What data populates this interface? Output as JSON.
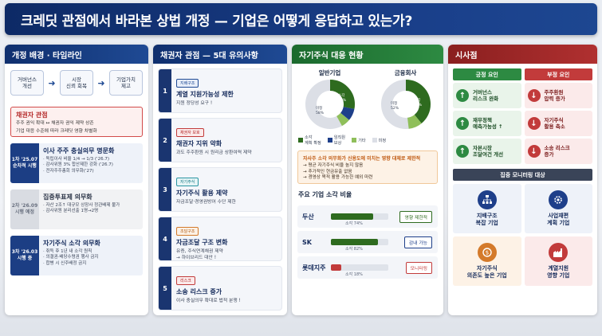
{
  "title": "크레딧 관점에서 바라본 상법 개정 — 기업은 어떻게 응답하고 있는가?",
  "col1": {
    "header": "개정 배경 · 타임라인",
    "flow": [
      "거버넌스\n개선",
      "시장\n신뢰 회복",
      "기업가치\n제고"
    ],
    "creditor": {
      "title": "채권자 관점",
      "line1": "주주 권익 확대 ↔ 채권자 권익 제약 상존",
      "line2": "기업 대응 수준에 따라 크레딧 영향 차별화"
    },
    "timeline": [
      {
        "badge": "1차 '25.07\n순차적 시행",
        "title": "이사 주주 충실의무 명문화",
        "lines": "· 독립이사 비율 1/4 → 1/3 ('26.7)\n· 감사위원 3% 합산제한 강화 ('26.7)\n· 전자주주총회 의무화('27)"
      },
      {
        "badge": "2차 '26.09\n시행 예정",
        "title": "집중투표제 의무화",
        "lines": "· 자산 2조↑ 대규모 상장사 정관배제 불가\n· 감사위원 분리선출 1명→2명"
      },
      {
        "badge": "3차 '26.03\n시행 중",
        "title": "자기주식 소각 의무화",
        "lines": "· 취득 후 1년 내 소각 원칙\n· 의결권·배당수령권 행사 금지\n· 합병 시 신주배정 금지"
      }
    ]
  },
  "col2": {
    "header": "채권자 관점 — 5대 유의사항",
    "cards": [
      {
        "num": "1",
        "tag": "지배구조",
        "title": "계열 지원가능성 제한",
        "desc": "지원 정당성 요구 !"
      },
      {
        "num": "2",
        "tag": "채권자 보호",
        "title": "채권자 지위 약화",
        "desc": "과도 주주환원 시 원리금 상환여력 제약"
      },
      {
        "num": "3",
        "tag": "자기주식",
        "title": "자기주식 활용 제약",
        "desc": "자금조달·경영권방어 수단 제한"
      },
      {
        "num": "4",
        "tag": "조달구조",
        "title": "자금조달 구조 변화",
        "desc": "유증, 주식연계채권 제약\n→ 하이브리드 대안 !"
      },
      {
        "num": "5",
        "tag": "리스크",
        "title": "소송 리스크 증가",
        "desc": "이사 충실의무 확대로 법적 분쟁 !"
      }
    ]
  },
  "col3": {
    "header": "자기주식 대응 현황",
    "pie1": {
      "title": "일반기업",
      "inner_a": "소각\n28%",
      "inner_b": "미정\n58%"
    },
    "pie2": {
      "title": "금융회사",
      "inner_a": "소각\n39%",
      "inner_b": "미정\n52%"
    },
    "legend": [
      {
        "label": "소각\n계획 확정",
        "color": "#2e6b1f"
      },
      {
        "label": "임직원\n보상",
        "color": "#1e3f8a"
      },
      {
        "label": "기타",
        "color": "#8fbf5a"
      },
      {
        "label": "미정",
        "color": "#dcdfe6"
      }
    ],
    "warn": {
      "title": "자사주 소각 의무화가 신용도에 미치는 영향 대체로 제한적",
      "lines": [
        "→ 평균 자기주식 비율 높지 않음",
        "→ 추가적인 현금유출 없음",
        "→ 경영상 목적 활용 가능한 예외 마련"
      ]
    },
    "bars_title": "주요 기업 소각 비율",
    "bars": [
      {
        "company": "두산",
        "pct_label": "소각 74%",
        "pill": "영향 제한적",
        "color": "#2e6b1f",
        "pillColor": "#2e6b1f"
      },
      {
        "company": "SK",
        "pct_label": "소각 82%",
        "pill": "감내 가능",
        "color": "#2e6b1f",
        "pillColor": "#1e3f8a"
      },
      {
        "company": "롯데지주",
        "pct_label": "소각 18%",
        "pill": "모니터링",
        "color": "#c23b3b",
        "pillColor": "#c23b3b"
      }
    ]
  },
  "col4": {
    "header": "시사점",
    "positive_head": "긍정 요인",
    "negative_head": "부정 요인",
    "positive": [
      "거버넌스\n리스크 완화",
      "재무정책\n예측가능성 ↑",
      "자본시장\n조달여건 개선"
    ],
    "negative": [
      "주주환원\n압력 증가",
      "자기주식\n활용 축소",
      "소송 리스크\n증가"
    ],
    "monitor_head": "집중 모니터링 대상",
    "monitor": [
      "지배구조\n복잡 기업",
      "사업재편\n계획 기업",
      "자기주식\n의존도 높은 기업",
      "계열지원\n영향 기업"
    ]
  }
}
